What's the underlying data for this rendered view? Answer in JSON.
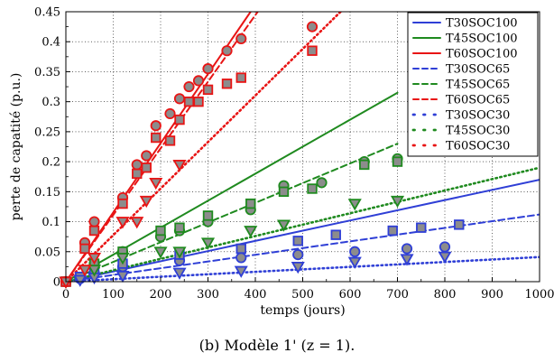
{
  "caption": "(b) Modèle 1' (z = 1).",
  "chart_data": {
    "type": "scatter",
    "xlabel": "temps (jours)",
    "ylabel": "perte de capatité (p.u.)",
    "xlim": [
      0,
      1000
    ],
    "ylim": [
      0,
      0.45
    ],
    "x_ticks": [
      "0",
      "100",
      "200",
      "300",
      "400",
      "500",
      "600",
      "700",
      "800",
      "900",
      "1000"
    ],
    "y_ticks": [
      "0",
      "0.05",
      "0.1",
      "0.15",
      "0.2",
      "0.25",
      "0.3",
      "0.35",
      "0.4",
      "0.45"
    ],
    "grid": true,
    "legend_position": "top-right",
    "colors": {
      "T30": "#2f3fd6",
      "T45": "#1f8a1f",
      "T60": "#e81515",
      "marker_fill": "#8c8c8c"
    },
    "legend": [
      {
        "name": "T30SOC100",
        "color": "#2f3fd6",
        "style": "solid"
      },
      {
        "name": "T45SOC100",
        "color": "#1f8a1f",
        "style": "solid"
      },
      {
        "name": "T60SOC100",
        "color": "#e81515",
        "style": "solid"
      },
      {
        "name": "T30SOC65",
        "color": "#2f3fd6",
        "style": "dashed"
      },
      {
        "name": "T45SOC65",
        "color": "#1f8a1f",
        "style": "dashed"
      },
      {
        "name": "T60SOC65",
        "color": "#e81515",
        "style": "dashed"
      },
      {
        "name": "T30SOC30",
        "color": "#2f3fd6",
        "style": "dotted"
      },
      {
        "name": "T45SOC30",
        "color": "#1f8a1f",
        "style": "dotted"
      },
      {
        "name": "T60SOC30",
        "color": "#e81515",
        "style": "dotted"
      }
    ],
    "model_lines": [
      {
        "name": "T30SOC100",
        "color": "#2f3fd6",
        "style": "solid",
        "x": [
          0,
          1000
        ],
        "y": [
          0,
          0.17
        ]
      },
      {
        "name": "T45SOC100",
        "color": "#1f8a1f",
        "style": "solid",
        "x": [
          0,
          700
        ],
        "y": [
          0,
          0.315
        ]
      },
      {
        "name": "T60SOC100",
        "color": "#e81515",
        "style": "solid",
        "x": [
          0,
          390
        ],
        "y": [
          0,
          0.45
        ]
      },
      {
        "name": "T30SOC65",
        "color": "#2f3fd6",
        "style": "dashed",
        "x": [
          0,
          1000
        ],
        "y": [
          0,
          0.112
        ]
      },
      {
        "name": "T45SOC65",
        "color": "#1f8a1f",
        "style": "dashed",
        "x": [
          0,
          700
        ],
        "y": [
          0,
          0.23
        ]
      },
      {
        "name": "T60SOC65",
        "color": "#e81515",
        "style": "dashed",
        "x": [
          0,
          405
        ],
        "y": [
          0,
          0.45
        ]
      },
      {
        "name": "T30SOC30",
        "color": "#2f3fd6",
        "style": "dotted",
        "x": [
          0,
          1000
        ],
        "y": [
          0,
          0.041
        ]
      },
      {
        "name": "T45SOC30",
        "color": "#1f8a1f",
        "style": "dotted",
        "x": [
          0,
          1000
        ],
        "y": [
          0,
          0.19
        ]
      },
      {
        "name": "T60SOC30",
        "color": "#e81515",
        "style": "dotted",
        "x": [
          0,
          580
        ],
        "y": [
          0,
          0.45
        ]
      }
    ],
    "measurements": [
      {
        "name": "T30SOC100",
        "color": "#2f3fd6",
        "marker": "circle",
        "x": [
          0,
          30,
          60,
          120,
          240,
          370,
          490,
          610,
          720,
          800
        ],
        "y": [
          0,
          0.005,
          0.015,
          0.025,
          0.035,
          0.04,
          0.045,
          0.05,
          0.055,
          0.058
        ]
      },
      {
        "name": "T30SOC65",
        "color": "#2f3fd6",
        "marker": "square",
        "x": [
          0,
          30,
          60,
          120,
          240,
          370,
          490,
          570,
          690,
          750,
          830
        ],
        "y": [
          0,
          0.008,
          0.02,
          0.03,
          0.045,
          0.055,
          0.068,
          0.078,
          0.085,
          0.09,
          0.095
        ]
      },
      {
        "name": "T30SOC30",
        "color": "#2f3fd6",
        "marker": "triangle",
        "x": [
          0,
          30,
          60,
          120,
          240,
          370,
          490,
          610,
          720,
          800
        ],
        "y": [
          0,
          0.003,
          0.007,
          0.01,
          0.015,
          0.018,
          0.025,
          0.033,
          0.038,
          0.042
        ]
      },
      {
        "name": "T45SOC100",
        "color": "#1f8a1f",
        "marker": "circle",
        "x": [
          0,
          60,
          120,
          200,
          240,
          300,
          390,
          460,
          540,
          630,
          700
        ],
        "y": [
          0,
          0.03,
          0.05,
          0.075,
          0.085,
          0.1,
          0.12,
          0.16,
          0.165,
          0.2,
          0.205
        ]
      },
      {
        "name": "T45SOC65",
        "color": "#1f8a1f",
        "marker": "square",
        "x": [
          0,
          60,
          120,
          200,
          240,
          300,
          390,
          460,
          520,
          630,
          700
        ],
        "y": [
          0,
          0.03,
          0.05,
          0.085,
          0.09,
          0.11,
          0.13,
          0.15,
          0.155,
          0.195,
          0.2
        ]
      },
      {
        "name": "T45SOC30",
        "color": "#1f8a1f",
        "marker": "triangle",
        "x": [
          0,
          60,
          120,
          200,
          240,
          300,
          390,
          460,
          610,
          700
        ],
        "y": [
          0,
          0.02,
          0.04,
          0.05,
          0.05,
          0.065,
          0.085,
          0.095,
          0.13,
          0.135
        ]
      },
      {
        "name": "T60SOC100",
        "color": "#e81515",
        "marker": "circle",
        "x": [
          0,
          40,
          60,
          120,
          150,
          170,
          190,
          220,
          240,
          260,
          280,
          300,
          340,
          370,
          520
        ],
        "y": [
          0,
          0.065,
          0.1,
          0.14,
          0.195,
          0.21,
          0.26,
          0.28,
          0.305,
          0.325,
          0.335,
          0.355,
          0.385,
          0.405,
          0.425
        ]
      },
      {
        "name": "T60SOC65",
        "color": "#e81515",
        "marker": "square",
        "x": [
          0,
          40,
          60,
          120,
          150,
          170,
          190,
          220,
          240,
          260,
          280,
          300,
          340,
          370,
          520
        ],
        "y": [
          0,
          0.055,
          0.085,
          0.13,
          0.18,
          0.19,
          0.24,
          0.235,
          0.27,
          0.3,
          0.3,
          0.32,
          0.33,
          0.34,
          0.385
        ]
      },
      {
        "name": "T60SOC30",
        "color": "#e81515",
        "marker": "triangle",
        "x": [
          0,
          40,
          60,
          120,
          150,
          170,
          190,
          240
        ],
        "y": [
          0,
          0.02,
          0.04,
          0.1,
          0.1,
          0.135,
          0.165,
          0.195
        ]
      }
    ]
  }
}
